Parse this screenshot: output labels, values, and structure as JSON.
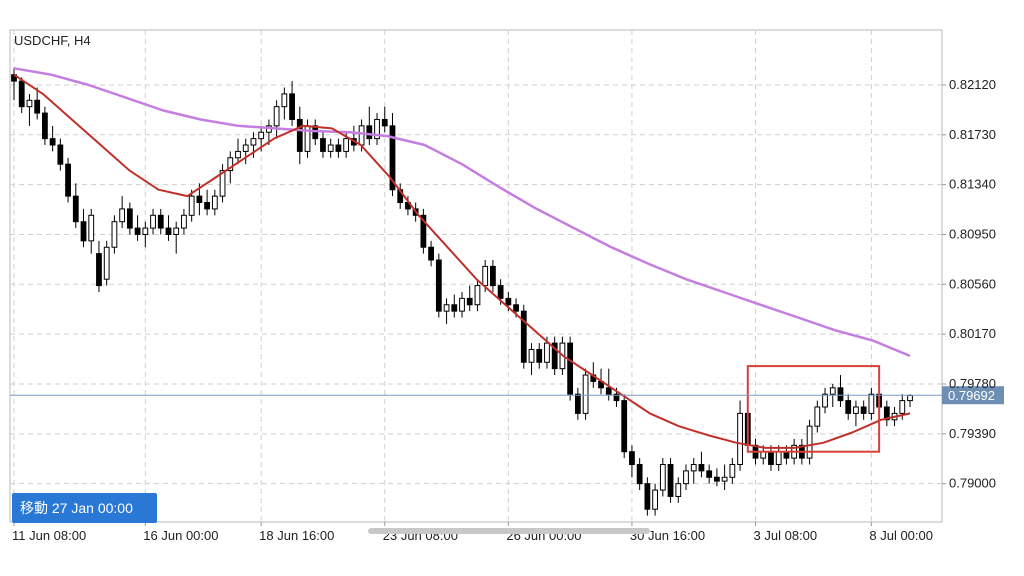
{
  "chart_data": {
    "type": "candlestick",
    "symbol": "USDCHF, H4",
    "current_price": "0.79692",
    "y_ticks": [
      "0.82120",
      "0.81730",
      "0.81340",
      "0.80950",
      "0.80560",
      "0.80170",
      "0.79780",
      "0.79390",
      "0.79000"
    ],
    "x_ticks": [
      "11 Jun 08:00",
      "16 Jun 00:00",
      "18 Jun 16:00",
      "23 Jun 08:00",
      "26 Jun 00:00",
      "30 Jun 16:00",
      "3 Jul 08:00",
      "8 Jul 00:00"
    ],
    "ylim": [
      0.787,
      0.8255
    ],
    "grid": true,
    "candles": [
      [
        0.822,
        0.8225,
        0.82,
        0.8215
      ],
      [
        0.8215,
        0.8218,
        0.819,
        0.8195
      ],
      [
        0.8195,
        0.8205,
        0.818,
        0.82
      ],
      [
        0.82,
        0.821,
        0.8185,
        0.819
      ],
      [
        0.819,
        0.8195,
        0.8165,
        0.817
      ],
      [
        0.817,
        0.818,
        0.816,
        0.8165
      ],
      [
        0.8165,
        0.817,
        0.8145,
        0.815
      ],
      [
        0.815,
        0.8155,
        0.812,
        0.8125
      ],
      [
        0.8125,
        0.8135,
        0.81,
        0.8105
      ],
      [
        0.8105,
        0.8115,
        0.8085,
        0.809
      ],
      [
        0.809,
        0.8115,
        0.808,
        0.811
      ],
      [
        0.808,
        0.809,
        0.805,
        0.8055
      ],
      [
        0.806,
        0.809,
        0.8055,
        0.8085
      ],
      [
        0.8085,
        0.811,
        0.808,
        0.8105
      ],
      [
        0.8105,
        0.8125,
        0.81,
        0.8115
      ],
      [
        0.8115,
        0.812,
        0.8095,
        0.81
      ],
      [
        0.81,
        0.811,
        0.809,
        0.8095
      ],
      [
        0.8095,
        0.8105,
        0.8085,
        0.81
      ],
      [
        0.81,
        0.8115,
        0.8095,
        0.811
      ],
      [
        0.811,
        0.8115,
        0.8095,
        0.81
      ],
      [
        0.81,
        0.811,
        0.809,
        0.8095
      ],
      [
        0.8095,
        0.8105,
        0.808,
        0.81
      ],
      [
        0.81,
        0.8115,
        0.8095,
        0.811
      ],
      [
        0.811,
        0.813,
        0.8105,
        0.8125
      ],
      [
        0.8125,
        0.8135,
        0.811,
        0.812
      ],
      [
        0.812,
        0.813,
        0.811,
        0.8115
      ],
      [
        0.8115,
        0.813,
        0.811,
        0.8125
      ],
      [
        0.8125,
        0.815,
        0.812,
        0.8145
      ],
      [
        0.8145,
        0.816,
        0.8135,
        0.8155
      ],
      [
        0.8155,
        0.817,
        0.815,
        0.816
      ],
      [
        0.816,
        0.817,
        0.815,
        0.8165
      ],
      [
        0.8165,
        0.8175,
        0.8155,
        0.817
      ],
      [
        0.817,
        0.818,
        0.816,
        0.8175
      ],
      [
        0.8175,
        0.8185,
        0.8165,
        0.818
      ],
      [
        0.818,
        0.82,
        0.817,
        0.8195
      ],
      [
        0.8195,
        0.821,
        0.8185,
        0.8205
      ],
      [
        0.8205,
        0.8215,
        0.818,
        0.8185
      ],
      [
        0.8185,
        0.8195,
        0.815,
        0.816
      ],
      [
        0.816,
        0.8185,
        0.8155,
        0.818
      ],
      [
        0.818,
        0.8185,
        0.8165,
        0.817
      ],
      [
        0.817,
        0.8175,
        0.8155,
        0.816
      ],
      [
        0.816,
        0.817,
        0.8155,
        0.8165
      ],
      [
        0.8165,
        0.817,
        0.8155,
        0.816
      ],
      [
        0.816,
        0.8175,
        0.8155,
        0.817
      ],
      [
        0.817,
        0.818,
        0.816,
        0.8165
      ],
      [
        0.8165,
        0.8185,
        0.816,
        0.818
      ],
      [
        0.818,
        0.8195,
        0.8165,
        0.817
      ],
      [
        0.817,
        0.819,
        0.8165,
        0.8185
      ],
      [
        0.8185,
        0.8195,
        0.8175,
        0.818
      ],
      [
        0.818,
        0.819,
        0.8125,
        0.813
      ],
      [
        0.813,
        0.8135,
        0.8115,
        0.812
      ],
      [
        0.812,
        0.8125,
        0.811,
        0.8115
      ],
      [
        0.8115,
        0.812,
        0.8105,
        0.811
      ],
      [
        0.811,
        0.8115,
        0.808,
        0.8085
      ],
      [
        0.8085,
        0.809,
        0.807,
        0.8075
      ],
      [
        0.8075,
        0.808,
        0.803,
        0.8035
      ],
      [
        0.8035,
        0.8045,
        0.8025,
        0.804
      ],
      [
        0.804,
        0.8048,
        0.803,
        0.8035
      ],
      [
        0.8035,
        0.805,
        0.803,
        0.8045
      ],
      [
        0.8045,
        0.8055,
        0.8035,
        0.804
      ],
      [
        0.804,
        0.806,
        0.8035,
        0.8055
      ],
      [
        0.8055,
        0.8075,
        0.805,
        0.807
      ],
      [
        0.807,
        0.8075,
        0.805,
        0.8055
      ],
      [
        0.8055,
        0.806,
        0.804,
        0.8045
      ],
      [
        0.8045,
        0.805,
        0.8035,
        0.804
      ],
      [
        0.804,
        0.8045,
        0.803,
        0.8035
      ],
      [
        0.8035,
        0.804,
        0.799,
        0.7995
      ],
      [
        0.7995,
        0.801,
        0.7985,
        0.8005
      ],
      [
        0.8005,
        0.801,
        0.799,
        0.7995
      ],
      [
        0.7995,
        0.8015,
        0.799,
        0.801
      ],
      [
        0.801,
        0.8015,
        0.7985,
        0.799
      ],
      [
        0.799,
        0.8015,
        0.7985,
        0.801
      ],
      [
        0.801,
        0.8015,
        0.7965,
        0.797
      ],
      [
        0.797,
        0.7975,
        0.795,
        0.7955
      ],
      [
        0.7955,
        0.799,
        0.795,
        0.7985
      ],
      [
        0.7985,
        0.7995,
        0.7975,
        0.798
      ],
      [
        0.798,
        0.799,
        0.797,
        0.7975
      ],
      [
        0.7975,
        0.799,
        0.7965,
        0.797
      ],
      [
        0.797,
        0.7975,
        0.796,
        0.7965
      ],
      [
        0.7965,
        0.797,
        0.792,
        0.7925
      ],
      [
        0.7925,
        0.793,
        0.7905,
        0.7915
      ],
      [
        0.7915,
        0.792,
        0.7895,
        0.79
      ],
      [
        0.79,
        0.7905,
        0.7875,
        0.788
      ],
      [
        0.788,
        0.79,
        0.7875,
        0.7895
      ],
      [
        0.7895,
        0.792,
        0.789,
        0.7915
      ],
      [
        0.7915,
        0.792,
        0.7885,
        0.789
      ],
      [
        0.789,
        0.7905,
        0.7885,
        0.79
      ],
      [
        0.79,
        0.7915,
        0.7895,
        0.791
      ],
      [
        0.791,
        0.792,
        0.79,
        0.7915
      ],
      [
        0.7915,
        0.7925,
        0.7905,
        0.791
      ],
      [
        0.791,
        0.7915,
        0.79,
        0.7905
      ],
      [
        0.7905,
        0.7912,
        0.7898,
        0.7902
      ],
      [
        0.7902,
        0.7915,
        0.7895,
        0.7905
      ],
      [
        0.7905,
        0.792,
        0.79,
        0.7915
      ],
      [
        0.7915,
        0.7965,
        0.791,
        0.7955
      ],
      [
        0.7955,
        0.796,
        0.7925,
        0.793
      ],
      [
        0.793,
        0.7935,
        0.7915,
        0.792
      ],
      [
        0.792,
        0.793,
        0.7915,
        0.7925
      ],
      [
        0.7925,
        0.793,
        0.791,
        0.7915
      ],
      [
        0.7915,
        0.793,
        0.791,
        0.7925
      ],
      [
        0.7925,
        0.793,
        0.7915,
        0.792
      ],
      [
        0.792,
        0.7935,
        0.7915,
        0.793
      ],
      [
        0.793,
        0.7935,
        0.7915,
        0.792
      ],
      [
        0.792,
        0.795,
        0.7915,
        0.7945
      ],
      [
        0.7945,
        0.7965,
        0.794,
        0.796
      ],
      [
        0.796,
        0.7975,
        0.7955,
        0.797
      ],
      [
        0.797,
        0.7978,
        0.796,
        0.7975
      ],
      [
        0.7975,
        0.7985,
        0.796,
        0.7965
      ],
      [
        0.7965,
        0.797,
        0.795,
        0.7955
      ],
      [
        0.7955,
        0.7965,
        0.7945,
        0.796
      ],
      [
        0.796,
        0.7965,
        0.795,
        0.7955
      ],
      [
        0.7955,
        0.7975,
        0.795,
        0.797
      ],
      [
        0.797,
        0.798,
        0.7955,
        0.796
      ],
      [
        0.796,
        0.7965,
        0.7945,
        0.795
      ],
      [
        0.795,
        0.796,
        0.7945,
        0.7955
      ],
      [
        0.7955,
        0.797,
        0.795,
        0.7965
      ],
      [
        0.7965,
        0.797,
        0.796,
        0.7969
      ]
    ],
    "ma_fast": [
      0.822,
      0.8205,
      0.8185,
      0.8165,
      0.8145,
      0.813,
      0.8125,
      0.814,
      0.8155,
      0.817,
      0.818,
      0.8178,
      0.8165,
      0.814,
      0.811,
      0.8085,
      0.806,
      0.804,
      0.802,
      0.8,
      0.7985,
      0.797,
      0.7955,
      0.7945,
      0.7938,
      0.7932,
      0.7928,
      0.7928,
      0.7932,
      0.794,
      0.795,
      0.7955
    ],
    "ma_slow": [
      0.8225,
      0.822,
      0.8212,
      0.8202,
      0.8192,
      0.8185,
      0.818,
      0.8178,
      0.8176,
      0.8175,
      0.8172,
      0.8165,
      0.815,
      0.8132,
      0.8115,
      0.81,
      0.8085,
      0.8072,
      0.806,
      0.805,
      0.804,
      0.803,
      0.802,
      0.8012,
      0.8
    ],
    "box": {
      "start_index": 95,
      "end_index": 112,
      "top": 0.7992,
      "bottom": 0.7925
    },
    "colors": {
      "grid": "#cfcfcf",
      "ma_fast": "#c0302a",
      "ma_slow": "#c47ee0",
      "box": "#d9403a",
      "price_line": "#7a9cc2",
      "price_label": "#6d8fb3",
      "candle": "#000000"
    }
  },
  "goto": {
    "label": "移動",
    "value": "27 Jan 00:00"
  }
}
